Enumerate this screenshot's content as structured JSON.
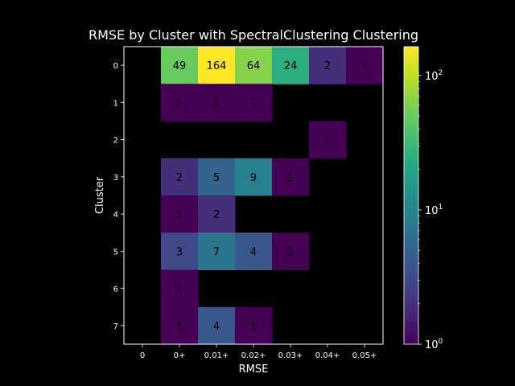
{
  "chart_data": {
    "type": "heatmap",
    "title": "RMSE by Cluster with SpectralClustering Clustering",
    "xlabel": "RMSE",
    "ylabel": "Cluster",
    "x_categories": [
      "0",
      "0+",
      "0.01+",
      "0.02+",
      "0.03+",
      "0.04+",
      "0.05+"
    ],
    "y_categories": [
      "0",
      "1",
      "2",
      "3",
      "4",
      "5",
      "6",
      "7"
    ],
    "values": [
      [
        null,
        49,
        164,
        64,
        24,
        2,
        1
      ],
      [
        null,
        1,
        1,
        1,
        null,
        null,
        null
      ],
      [
        null,
        null,
        null,
        null,
        null,
        1,
        null
      ],
      [
        null,
        2,
        5,
        9,
        1,
        null,
        null
      ],
      [
        null,
        1,
        2,
        null,
        null,
        null,
        null
      ],
      [
        null,
        3,
        7,
        4,
        1,
        null,
        null
      ],
      [
        null,
        1,
        null,
        null,
        null,
        null,
        null
      ],
      [
        null,
        1,
        4,
        1,
        null,
        null,
        null
      ]
    ],
    "colorbar": {
      "scale": "log",
      "colormap": "viridis",
      "range": [
        1,
        164
      ],
      "ticks": [
        {
          "value": 1,
          "base": "10",
          "exp": "0"
        },
        {
          "value": 10,
          "base": "10",
          "exp": "1"
        },
        {
          "value": 100,
          "base": "10",
          "exp": "2"
        }
      ]
    },
    "background_color": "#000000",
    "text_color": "#ffffff",
    "cell_text_color": "#000000"
  }
}
